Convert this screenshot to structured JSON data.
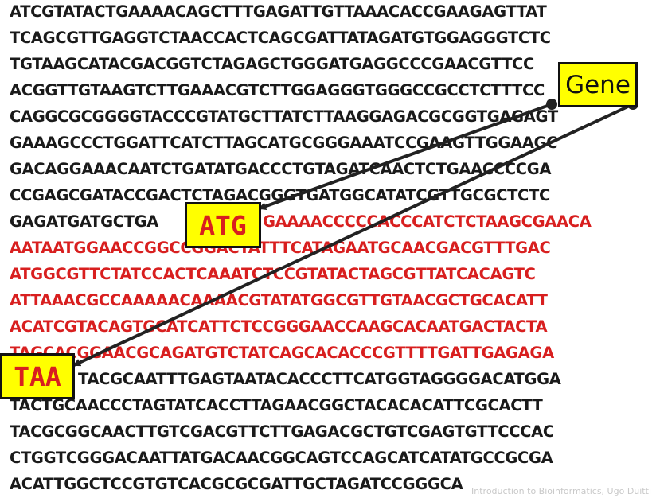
{
  "sequence_rows": [
    {
      "text": "ATCGTATACTGAAAACAGCTTTGAGATTGTTAAACACCGAAGAGTTAT",
      "coding": false
    },
    {
      "text": "TCAGCGTTGAGGTCTAACCACTCAGCGATTATAGATGTGGAGGGTCTC",
      "coding": false
    },
    {
      "text": "TGTAAGCATACGACGGTCTAGAGCTGGGATGAGGCCCGAACGTTCC",
      "coding": false
    },
    {
      "text": "ACGGTTGTAAGTCTTGAAACGTCTTGGAGGGTGGGCCGCCTCTTTCC",
      "coding": false
    },
    {
      "text": "CAGGCGCGGGGTACCCGTATGCTTATCTTAAGGAGACGCGGTGAGAGT",
      "coding": false
    },
    {
      "text": "GAAAGCCCTGGATTCATCTTAGCATGCGGGAAATCCGAAGTTGGAAGC",
      "coding": false
    },
    {
      "text": "GACAGGAAACAATCTGATATGACCCTGTAGATCAACTCTGAACCCCGA",
      "coding": false
    },
    {
      "text": "CCGAGCGATACCGACTCTAGACGGGTGATGGCATATCGTTGCGCTCTC",
      "coding": false
    },
    {
      "text": "GAGATGATGCTGA",
      "coding": false
    },
    {
      "text": "AATAATGGAACCGGCCGGACTATTTCATAGAATGCAACGACGTTTGAC",
      "coding": true
    },
    {
      "text": "ATGGCGTTCTATCCACTCAAATCTCCGTATACTAGCGTTATCACAGTC",
      "coding": true
    },
    {
      "text": "ATTAAACGCCAAAAACAAAACGTATATGGCGTTGTAACGCTGCACATT",
      "coding": true
    },
    {
      "text": "ACATCGTACAGTGCATCATTCTCCGGGAACCAAGCACAATGACTACTA",
      "coding": true
    },
    {
      "text": "TAGCACGGAACGCAGATGTCTATCAGCACACCCGTTTTGATTGAGAGA",
      "coding": true
    },
    {
      "text": "TACGCAATTTGAGTAATACACCCTTCATGGTAGGGGACATGGA",
      "coding": false
    },
    {
      "text": "TACTGCAACCCTAGTATCACCTTAGAACGGCTACACACATTCGCACTT",
      "coding": false
    },
    {
      "text": "TACGCGGCAACTTGTCGACGTTCTTGAGACGCTGTCGAGTGTTCCCAC",
      "coding": false
    },
    {
      "text": "CTGGTCGGGACAATTATGACAACGGCAGTCCAGCATCATATGCCGCGA",
      "coding": false
    },
    {
      "text": "ACATTGGCTCCGTGTCACGCGCGATTGCTAGATCCGGGCA",
      "coding": false
    }
  ],
  "red_continuation": "GAAAACCCCCACCCATCTCTAAGCGAACA",
  "labels": {
    "gene": "Gene",
    "start_codon": "ATG",
    "stop_codon": "TAA"
  },
  "colors": {
    "coding_text": "#d81f1f",
    "noncoding_text": "#1a1a1a",
    "label_fill": "#ffff00",
    "arrow": "#222222"
  },
  "watermark": "Introduction to Bioinformatics, Ugo Duitti"
}
